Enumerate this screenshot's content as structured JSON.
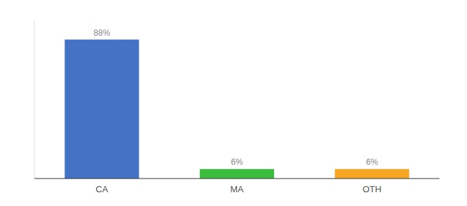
{
  "chart_data": {
    "type": "bar",
    "categories": [
      "CA",
      "MA",
      "OTH"
    ],
    "values": [
      88,
      6,
      6
    ],
    "value_labels": [
      "88%",
      "6%",
      "6%"
    ],
    "colors": [
      "#4472C4",
      "#3DBD3D",
      "#F5A623"
    ],
    "ylim": [
      0,
      100
    ],
    "data_labels": true,
    "grid": false,
    "tick_labels": "x"
  }
}
